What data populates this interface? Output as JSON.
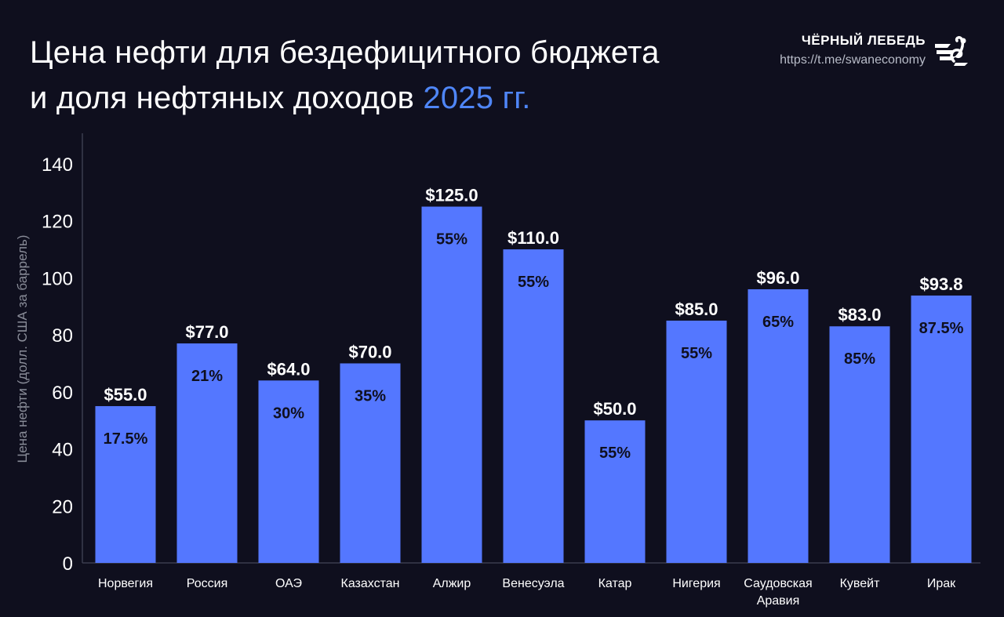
{
  "header": {
    "title_line1": "Цена нефти для бездефицитного бюджета",
    "title_line2": "и доля нефтяных доходов",
    "title_accent": "2025 гг.",
    "brand_name": "ЧЁРНЫЙ ЛЕБЕДЬ",
    "brand_url": "https://t.me/swaneconomy",
    "logo_icon": "swan-logo-icon"
  },
  "colors": {
    "background": "#0f0f1e",
    "bar": "#5477ff",
    "accent": "#4f86f7",
    "axis_text": "#ffffff",
    "ylabel_text": "#8a8d99"
  },
  "chart_data": {
    "type": "bar",
    "title": "Цена нефти для бездефицитного бюджета и доля нефтяных доходов 2025 гг.",
    "ylabel": "Цена нефти (долл. США за баррель)",
    "xlabel": "",
    "ylim": [
      0,
      150
    ],
    "yticks": [
      0,
      20,
      40,
      60,
      80,
      100,
      120,
      140
    ],
    "categories": [
      [
        "Норвегия"
      ],
      [
        "Россия"
      ],
      [
        "ОАЭ"
      ],
      [
        "Казахстан"
      ],
      [
        "Алжир"
      ],
      [
        "Венесуэла"
      ],
      [
        "Катар"
      ],
      [
        "Нигерия"
      ],
      [
        "Саудовская",
        "Аравия"
      ],
      [
        "Кувейт"
      ],
      [
        "Ирак"
      ]
    ],
    "values": [
      55.0,
      77.0,
      64.0,
      70.0,
      125.0,
      110.0,
      50.0,
      85.0,
      96.0,
      83.0,
      93.8
    ],
    "value_labels": [
      "$55.0",
      "$77.0",
      "$64.0",
      "$70.0",
      "$125.0",
      "$110.0",
      "$50.0",
      "$85.0",
      "$96.0",
      "$83.0",
      "$93.8"
    ],
    "share_labels": [
      "17.5%",
      "21%",
      "30%",
      "35%",
      "55%",
      "55%",
      "55%",
      "55%",
      "65%",
      "85%",
      "87.5%"
    ],
    "grid": false,
    "legend": "none"
  }
}
